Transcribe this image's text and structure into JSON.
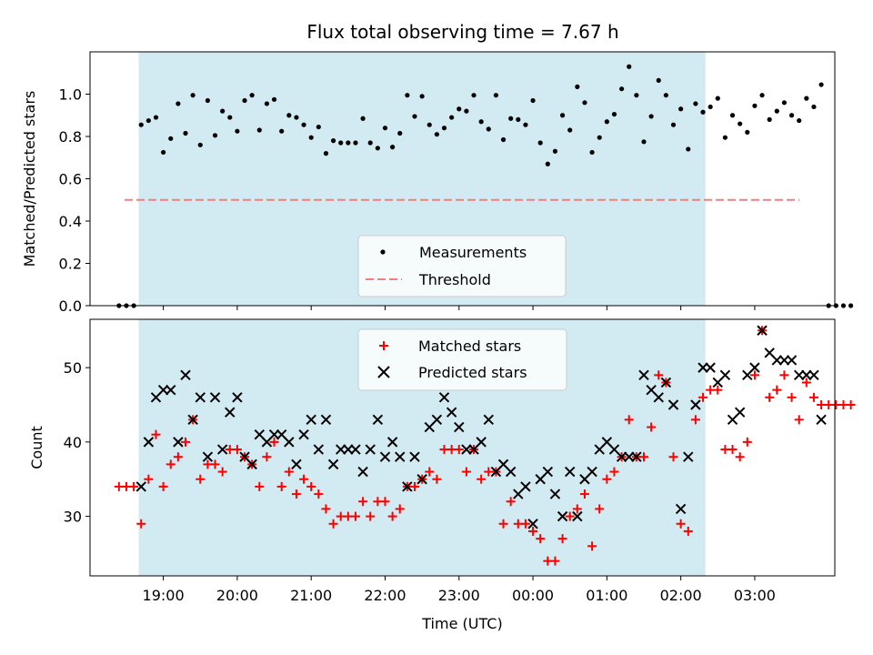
{
  "chart_data": {
    "type": "scatter",
    "title": "Flux total observing time = 7.67 h",
    "xlabel": "Time (UTC)",
    "x_ticks": [
      "19:00",
      "20:00",
      "21:00",
      "22:00",
      "23:00",
      "00:00",
      "01:00",
      "02:00",
      "03:00"
    ],
    "observing_window": {
      "start": "18:40",
      "end": "02:20",
      "color": "#add8e6"
    },
    "top_panel": {
      "ylabel": "Matched/Predicted stars",
      "ylim": [
        0,
        1.2
      ],
      "y_ticks": [
        "0.0",
        "0.2",
        "0.4",
        "0.6",
        "0.8",
        "1.0"
      ],
      "threshold": {
        "name": "Threshold",
        "value": 0.5,
        "color": "#f08080"
      },
      "legend": [
        "Measurements",
        "Threshold"
      ],
      "measurements": {
        "name": "Measurements",
        "color": "#000000",
        "points": [
          [
            "18:24",
            0
          ],
          [
            "18:30",
            0
          ],
          [
            "18:36",
            0
          ],
          [
            "18:42",
            0.855
          ],
          [
            "18:48",
            0.875
          ],
          [
            "18:54",
            0.89
          ],
          [
            "19:00",
            0.725
          ],
          [
            "19:06",
            0.79
          ],
          [
            "19:12",
            0.955
          ],
          [
            "19:18",
            0.815
          ],
          [
            "19:24",
            0.995
          ],
          [
            "19:30",
            0.76
          ],
          [
            "19:36",
            0.97
          ],
          [
            "19:42",
            0.805
          ],
          [
            "19:48",
            0.92
          ],
          [
            "19:54",
            0.89
          ],
          [
            "20:00",
            0.825
          ],
          [
            "20:06",
            0.97
          ],
          [
            "20:12",
            0.995
          ],
          [
            "20:18",
            0.83
          ],
          [
            "20:24",
            0.955
          ],
          [
            "20:30",
            0.975
          ],
          [
            "20:36",
            0.825
          ],
          [
            "20:42",
            0.9
          ],
          [
            "20:48",
            0.89
          ],
          [
            "20:54",
            0.855
          ],
          [
            "21:00",
            0.795
          ],
          [
            "21:06",
            0.845
          ],
          [
            "21:12",
            0.72
          ],
          [
            "21:18",
            0.78
          ],
          [
            "21:24",
            0.77
          ],
          [
            "21:30",
            0.77
          ],
          [
            "21:36",
            0.77
          ],
          [
            "21:42",
            0.885
          ],
          [
            "21:48",
            0.77
          ],
          [
            "21:54",
            0.745
          ],
          [
            "22:00",
            0.84
          ],
          [
            "22:06",
            0.75
          ],
          [
            "22:12",
            0.815
          ],
          [
            "22:18",
            0.995
          ],
          [
            "22:24",
            0.895
          ],
          [
            "22:30",
            0.99
          ],
          [
            "22:36",
            0.855
          ],
          [
            "22:42",
            0.81
          ],
          [
            "22:48",
            0.84
          ],
          [
            "22:54",
            0.89
          ],
          [
            "23:00",
            0.93
          ],
          [
            "23:06",
            0.92
          ],
          [
            "23:12",
            0.995
          ],
          [
            "23:18",
            0.87
          ],
          [
            "23:24",
            0.835
          ],
          [
            "23:30",
            0.995
          ],
          [
            "23:36",
            0.785
          ],
          [
            "23:42",
            0.885
          ],
          [
            "23:48",
            0.88
          ],
          [
            "23:54",
            0.855
          ],
          [
            "00:00",
            0.97
          ],
          [
            "00:06",
            0.77
          ],
          [
            "00:12",
            0.67
          ],
          [
            "00:18",
            0.73
          ],
          [
            "00:24",
            0.9
          ],
          [
            "00:30",
            0.83
          ],
          [
            "00:36",
            1.035
          ],
          [
            "00:42",
            0.96
          ],
          [
            "00:48",
            0.725
          ],
          [
            "00:54",
            0.795
          ],
          [
            "01:00",
            0.87
          ],
          [
            "01:06",
            0.905
          ],
          [
            "01:12",
            1.025
          ],
          [
            "01:18",
            1.13
          ],
          [
            "01:24",
            0.995
          ],
          [
            "01:30",
            0.775
          ],
          [
            "01:36",
            0.895
          ],
          [
            "01:42",
            1.065
          ],
          [
            "01:48",
            0.995
          ],
          [
            "01:54",
            0.855
          ],
          [
            "02:00",
            0.93
          ],
          [
            "02:06",
            0.74
          ],
          [
            "02:12",
            0.955
          ],
          [
            "02:18",
            0.915
          ],
          [
            "02:24",
            0.94
          ],
          [
            "02:30",
            0.98
          ],
          [
            "02:36",
            0.795
          ],
          [
            "02:42",
            0.9
          ],
          [
            "02:48",
            0.86
          ],
          [
            "02:54",
            0.82
          ],
          [
            "03:00",
            0.945
          ],
          [
            "03:06",
            0.995
          ],
          [
            "03:12",
            0.88
          ],
          [
            "03:18",
            0.92
          ],
          [
            "03:24",
            0.96
          ],
          [
            "03:30",
            0.9
          ],
          [
            "03:36",
            0.875
          ],
          [
            "03:42",
            0.98
          ],
          [
            "03:48",
            0.94
          ],
          [
            "03:54",
            1.045
          ],
          [
            "04:00",
            0
          ],
          [
            "04:06",
            0
          ],
          [
            "04:12",
            0
          ],
          [
            "04:18",
            0
          ]
        ]
      }
    },
    "bottom_panel": {
      "ylabel": "Count",
      "ylim": [
        22,
        56.5
      ],
      "y_ticks": [
        "30",
        "40",
        "50"
      ],
      "legend": [
        "Matched stars",
        "Predicted stars"
      ],
      "matched": {
        "name": "Matched stars",
        "color": "#ff0000",
        "points": [
          [
            "18:24",
            34
          ],
          [
            "18:30",
            34
          ],
          [
            "18:36",
            34
          ],
          [
            "18:42",
            29
          ],
          [
            "18:48",
            35
          ],
          [
            "18:54",
            41
          ],
          [
            "19:00",
            34
          ],
          [
            "19:06",
            37
          ],
          [
            "19:12",
            38
          ],
          [
            "19:18",
            40
          ],
          [
            "19:24",
            43
          ],
          [
            "19:30",
            35
          ],
          [
            "19:36",
            37
          ],
          [
            "19:42",
            37
          ],
          [
            "19:48",
            36
          ],
          [
            "19:54",
            39
          ],
          [
            "20:00",
            39
          ],
          [
            "20:06",
            38
          ],
          [
            "20:12",
            37
          ],
          [
            "20:18",
            34
          ],
          [
            "20:24",
            38
          ],
          [
            "20:30",
            40
          ],
          [
            "20:36",
            34
          ],
          [
            "20:42",
            36
          ],
          [
            "20:48",
            33
          ],
          [
            "20:54",
            35
          ],
          [
            "21:00",
            34
          ],
          [
            "21:06",
            33
          ],
          [
            "21:12",
            31
          ],
          [
            "21:18",
            29
          ],
          [
            "21:24",
            30
          ],
          [
            "21:30",
            30
          ],
          [
            "21:36",
            30
          ],
          [
            "21:42",
            32
          ],
          [
            "21:48",
            30
          ],
          [
            "21:54",
            32
          ],
          [
            "22:00",
            32
          ],
          [
            "22:06",
            30
          ],
          [
            "22:12",
            31
          ],
          [
            "22:18",
            34
          ],
          [
            "22:24",
            34
          ],
          [
            "22:30",
            35
          ],
          [
            "22:36",
            36
          ],
          [
            "22:42",
            35
          ],
          [
            "22:48",
            39
          ],
          [
            "22:54",
            39
          ],
          [
            "23:00",
            39
          ],
          [
            "23:06",
            36
          ],
          [
            "23:12",
            39
          ],
          [
            "23:18",
            35
          ],
          [
            "23:24",
            36
          ],
          [
            "23:30",
            36
          ],
          [
            "23:36",
            29
          ],
          [
            "23:42",
            32
          ],
          [
            "23:48",
            29
          ],
          [
            "23:54",
            29
          ],
          [
            "00:00",
            28
          ],
          [
            "00:06",
            27
          ],
          [
            "00:12",
            24
          ],
          [
            "00:18",
            24
          ],
          [
            "00:24",
            27
          ],
          [
            "00:30",
            30
          ],
          [
            "00:36",
            31
          ],
          [
            "00:42",
            33
          ],
          [
            "00:48",
            26
          ],
          [
            "00:54",
            31
          ],
          [
            "01:00",
            35
          ],
          [
            "01:06",
            36
          ],
          [
            "01:12",
            38
          ],
          [
            "01:18",
            43
          ],
          [
            "01:24",
            38
          ],
          [
            "01:30",
            38
          ],
          [
            "01:36",
            42
          ],
          [
            "01:42",
            49
          ],
          [
            "01:48",
            48
          ],
          [
            "01:54",
            38
          ],
          [
            "02:00",
            29
          ],
          [
            "02:06",
            28
          ],
          [
            "02:12",
            43
          ],
          [
            "02:18",
            46
          ],
          [
            "02:24",
            47
          ],
          [
            "02:30",
            47
          ],
          [
            "02:36",
            39
          ],
          [
            "02:42",
            39
          ],
          [
            "02:48",
            38
          ],
          [
            "02:54",
            40
          ],
          [
            "03:00",
            49
          ],
          [
            "03:06",
            55
          ],
          [
            "03:12",
            46
          ],
          [
            "03:18",
            47
          ],
          [
            "03:24",
            49
          ],
          [
            "03:30",
            46
          ],
          [
            "03:36",
            43
          ],
          [
            "03:42",
            48
          ],
          [
            "03:48",
            46
          ],
          [
            "03:54",
            45
          ],
          [
            "04:00",
            45
          ],
          [
            "04:06",
            45
          ],
          [
            "04:12",
            45
          ],
          [
            "04:18",
            45
          ]
        ]
      },
      "predicted": {
        "name": "Predicted stars",
        "color": "#000000",
        "points": [
          [
            "18:42",
            34
          ],
          [
            "18:48",
            40
          ],
          [
            "18:54",
            46
          ],
          [
            "19:00",
            47
          ],
          [
            "19:06",
            47
          ],
          [
            "19:12",
            40
          ],
          [
            "19:18",
            49
          ],
          [
            "19:24",
            43
          ],
          [
            "19:30",
            46
          ],
          [
            "19:36",
            38
          ],
          [
            "19:42",
            46
          ],
          [
            "19:48",
            39
          ],
          [
            "19:54",
            44
          ],
          [
            "20:00",
            46
          ],
          [
            "20:06",
            38
          ],
          [
            "20:12",
            37
          ],
          [
            "20:18",
            41
          ],
          [
            "20:24",
            40
          ],
          [
            "20:30",
            41
          ],
          [
            "20:36",
            41
          ],
          [
            "20:42",
            40
          ],
          [
            "20:48",
            37
          ],
          [
            "20:54",
            41
          ],
          [
            "21:00",
            43
          ],
          [
            "21:06",
            39
          ],
          [
            "21:12",
            43
          ],
          [
            "21:18",
            37
          ],
          [
            "21:24",
            39
          ],
          [
            "21:30",
            39
          ],
          [
            "21:36",
            39
          ],
          [
            "21:42",
            36
          ],
          [
            "21:48",
            39
          ],
          [
            "21:54",
            43
          ],
          [
            "22:00",
            38
          ],
          [
            "22:06",
            40
          ],
          [
            "22:12",
            38
          ],
          [
            "22:18",
            34
          ],
          [
            "22:24",
            38
          ],
          [
            "22:30",
            35
          ],
          [
            "22:36",
            42
          ],
          [
            "22:42",
            43
          ],
          [
            "22:48",
            46
          ],
          [
            "22:54",
            44
          ],
          [
            "23:00",
            42
          ],
          [
            "23:06",
            39
          ],
          [
            "23:12",
            39
          ],
          [
            "23:18",
            40
          ],
          [
            "23:24",
            43
          ],
          [
            "23:30",
            36
          ],
          [
            "23:36",
            37
          ],
          [
            "23:42",
            36
          ],
          [
            "23:48",
            33
          ],
          [
            "23:54",
            34
          ],
          [
            "00:00",
            29
          ],
          [
            "00:06",
            35
          ],
          [
            "00:12",
            36
          ],
          [
            "00:18",
            33
          ],
          [
            "00:24",
            30
          ],
          [
            "00:30",
            36
          ],
          [
            "00:36",
            30
          ],
          [
            "00:42",
            35
          ],
          [
            "00:48",
            36
          ],
          [
            "00:54",
            39
          ],
          [
            "01:00",
            40
          ],
          [
            "01:06",
            39
          ],
          [
            "01:12",
            38
          ],
          [
            "01:18",
            38
          ],
          [
            "01:24",
            38
          ],
          [
            "01:30",
            49
          ],
          [
            "01:36",
            47
          ],
          [
            "01:42",
            46
          ],
          [
            "01:48",
            48
          ],
          [
            "01:54",
            45
          ],
          [
            "02:00",
            31
          ],
          [
            "02:06",
            38
          ],
          [
            "02:12",
            45
          ],
          [
            "02:18",
            50
          ],
          [
            "02:24",
            50
          ],
          [
            "02:30",
            48
          ],
          [
            "02:36",
            49
          ],
          [
            "02:42",
            43
          ],
          [
            "02:48",
            44
          ],
          [
            "02:54",
            49
          ],
          [
            "03:00",
            50
          ],
          [
            "03:06",
            55
          ],
          [
            "03:12",
            52
          ],
          [
            "03:18",
            51
          ],
          [
            "03:24",
            51
          ],
          [
            "03:30",
            51
          ],
          [
            "03:36",
            49
          ],
          [
            "03:42",
            49
          ],
          [
            "03:48",
            49
          ],
          [
            "03:54",
            43
          ]
        ]
      }
    }
  }
}
